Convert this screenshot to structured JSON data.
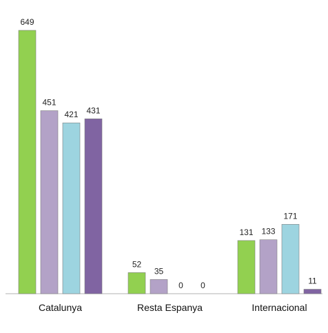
{
  "chart_data": {
    "type": "bar",
    "categories": [
      "Catalunya",
      "Resta Espanya",
      "Internacional"
    ],
    "series": [
      {
        "values": [
          649,
          52,
          131
        ],
        "color": "#92d050"
      },
      {
        "values": [
          451,
          35,
          133
        ],
        "color": "#b3a2c7"
      },
      {
        "values": [
          421,
          0,
          171
        ],
        "color": "#9dd4e0"
      },
      {
        "values": [
          431,
          0,
          11
        ],
        "color": "#8064a2"
      }
    ],
    "ylim": [
      0,
      700
    ],
    "grid": false,
    "legend": "none",
    "title": "",
    "xlabel": "",
    "ylabel": ""
  }
}
